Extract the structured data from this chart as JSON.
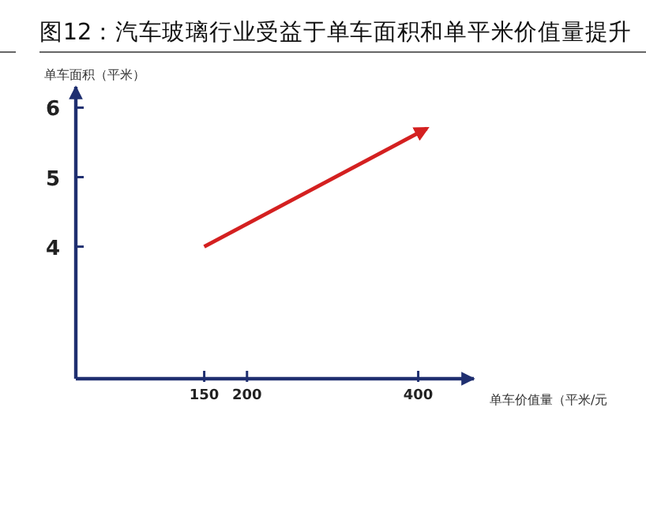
{
  "chart_data": {
    "type": "line",
    "title": "图12：汽车玻璃行业受益于单车面积和单平米价值量提升",
    "xlabel": "单车价值量（平米/元",
    "ylabel": "单车面积（平米）",
    "x": [
      150,
      410
    ],
    "series": [
      {
        "color": "#d42020",
        "values": [
          4,
          5.7
        ]
      }
    ],
    "xlim": [
      0,
      465
    ],
    "ylim": [
      2.1,
      6.3
    ],
    "xticks": [
      150,
      200,
      400
    ],
    "yticks": [
      4,
      5,
      6
    ]
  }
}
